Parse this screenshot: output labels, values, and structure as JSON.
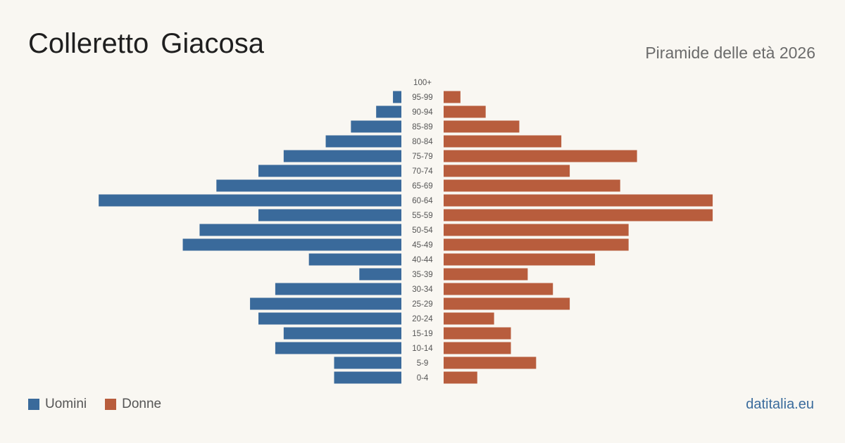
{
  "header": {
    "title": "Colleretto Giacosa",
    "subtitle": "Piramide delle età 2026"
  },
  "legend": {
    "men_label": "Uomini",
    "women_label": "Donne"
  },
  "footer": {
    "site": "datitalia.eu"
  },
  "colors": {
    "men": "#3a6a9b",
    "women": "#b85d3d"
  },
  "chart_data": {
    "type": "bar",
    "orientation": "horizontal-pyramid",
    "title": "Colleretto Giacosa",
    "subtitle": "Piramide delle età 2026",
    "categories": [
      "100+",
      "95-99",
      "90-94",
      "85-89",
      "80-84",
      "75-79",
      "70-74",
      "65-69",
      "60-64",
      "55-59",
      "50-54",
      "45-49",
      "40-44",
      "35-39",
      "30-34",
      "25-29",
      "20-24",
      "15-19",
      "10-14",
      "5-9",
      "0-4"
    ],
    "series": [
      {
        "name": "Uomini",
        "side": "left",
        "values": [
          0,
          1,
          3,
          6,
          9,
          14,
          17,
          22,
          36,
          17,
          24,
          26,
          11,
          5,
          15,
          18,
          17,
          14,
          15,
          8,
          8
        ]
      },
      {
        "name": "Donne",
        "side": "right",
        "values": [
          0,
          2,
          5,
          9,
          14,
          23,
          15,
          21,
          32,
          32,
          22,
          22,
          18,
          10,
          13,
          15,
          6,
          8,
          8,
          11,
          4
        ]
      }
    ],
    "grid": false,
    "legend_position": "bottom-left"
  }
}
